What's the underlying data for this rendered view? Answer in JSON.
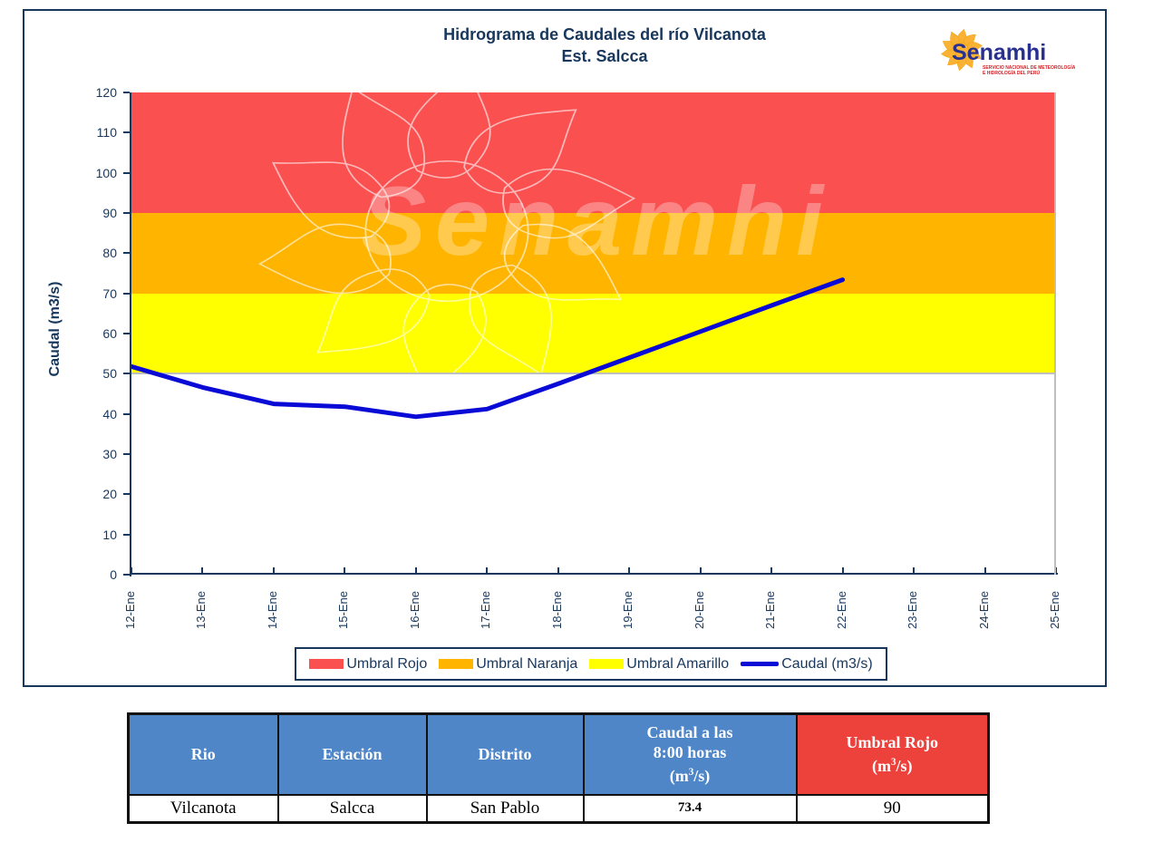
{
  "header": {
    "title_line1": "Hidrograma  de Caudales del río Vilcanota",
    "title_line2": "Est. Salcca"
  },
  "logo": {
    "name": "Senamhi",
    "caption_line1": "SERVICIO NACIONAL DE METEOROLOGÍA",
    "caption_line2": "E HIDROLOGÍA DEL PERÚ"
  },
  "watermark": {
    "text": "Senamhi"
  },
  "chart_data": {
    "type": "line",
    "title": "Hidrograma de Caudales del río Vilcanota - Est. Salcca",
    "xlabel": "",
    "ylabel": "Caudal (m3/s)",
    "ylim": [
      0,
      120
    ],
    "yticks": [
      0,
      10,
      20,
      30,
      40,
      50,
      60,
      70,
      80,
      90,
      100,
      110,
      120
    ],
    "categories": [
      "12-Ene",
      "13-Ene",
      "14-Ene",
      "15-Ene",
      "16-Ene",
      "17-Ene",
      "18-Ene",
      "19-Ene",
      "20-Ene",
      "21-Ene",
      "22-Ene",
      "23-Ene",
      "24-Ene",
      "25-Ene"
    ],
    "series": [
      {
        "name": "Caudal (m3/s)",
        "color": "#0a0ad6",
        "values": [
          51.8,
          46.6,
          42.5,
          41.8,
          39.3,
          41.2,
          47.5,
          54.0,
          60.5,
          67.0,
          73.4,
          null,
          null,
          null
        ]
      }
    ],
    "thresholds": [
      {
        "name": "Umbral Rojo",
        "from": 90,
        "to": 120,
        "color": "#fa5050"
      },
      {
        "name": "Umbral Naranja",
        "from": 70,
        "to": 90,
        "color": "#ffb400"
      },
      {
        "name": "Umbral Amarillo",
        "from": 50,
        "to": 70,
        "color": "#ffff00"
      }
    ],
    "baseline_50_color": "#bfbfbf",
    "legend": [
      {
        "label": "Umbral Rojo",
        "swatch": "box",
        "color": "#fa5050"
      },
      {
        "label": "Umbral Naranja",
        "swatch": "box",
        "color": "#ffb400"
      },
      {
        "label": "Umbral Amarillo",
        "swatch": "box",
        "color": "#ffff00"
      },
      {
        "label": "Caudal (m3/s)",
        "swatch": "line",
        "color": "#0a0ad6"
      }
    ],
    "legend_position": "bottom",
    "grid": false
  },
  "table": {
    "unit": {
      "pre": "(m",
      "sup": "3",
      "post": "/s)"
    },
    "headers": [
      {
        "lines": [
          "Rio"
        ],
        "unit": false,
        "bg": "#4e86c8"
      },
      {
        "lines": [
          "Estación"
        ],
        "unit": false,
        "bg": "#4e86c8"
      },
      {
        "lines": [
          "Distrito"
        ],
        "unit": false,
        "bg": "#4e86c8"
      },
      {
        "lines": [
          "Caudal a las",
          "8:00 horas"
        ],
        "unit": true,
        "bg": "#4e86c8"
      },
      {
        "lines": [
          "Umbral Rojo"
        ],
        "unit": true,
        "bg": "#ed423c"
      }
    ],
    "rows": [
      [
        "Vilcanota",
        "Salcca",
        "San Pablo",
        "73.4",
        "90"
      ]
    ]
  },
  "colors": {
    "navy": "#17375d",
    "card_border": "#17375d",
    "axis": "#17375d",
    "line_blue": "#0a0ad6",
    "band_red": "#fa5050",
    "band_orange": "#ffb400",
    "band_yellow": "#ffff00",
    "table_header_blue": "#4e86c8",
    "table_header_red": "#ed423c",
    "gray_line": "#bfbfbf"
  }
}
